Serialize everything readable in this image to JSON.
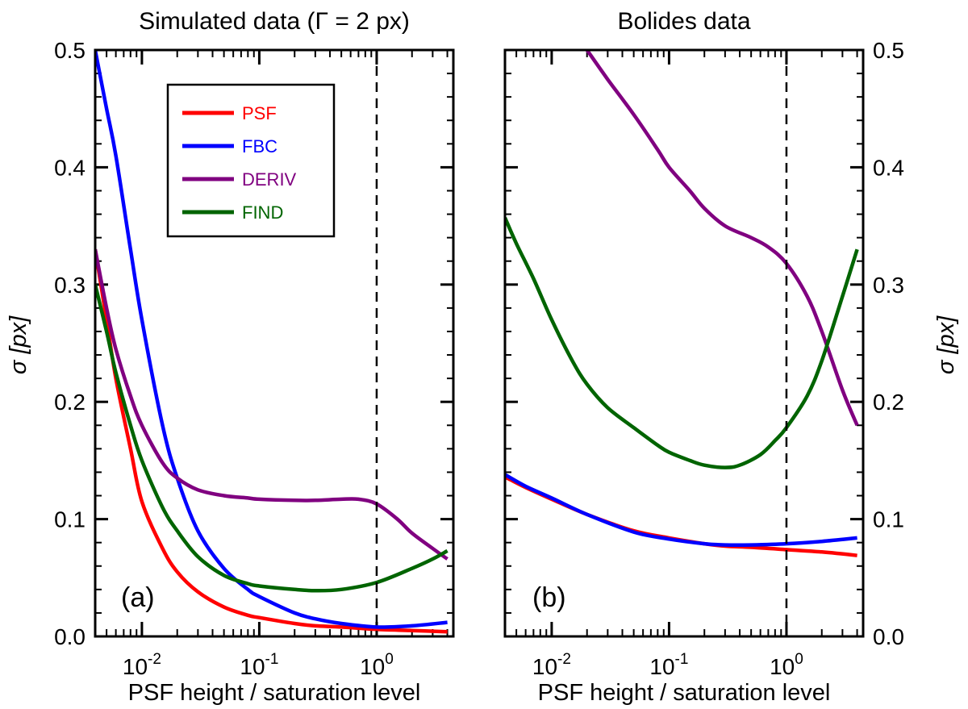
{
  "chart_data": [
    {
      "type": "line",
      "panel_label": "(a)",
      "title": "Simulated data (Γ = 2 px)",
      "xlabel": "PSF height / saturation level",
      "ylabel": "σ [px]",
      "xscale": "log",
      "xlim": [
        0.004,
        4.5
      ],
      "ylim": [
        0.0,
        0.5
      ],
      "yticks": [
        "0.0",
        "0.1",
        "0.2",
        "0.3",
        "0.4",
        "0.5"
      ],
      "xticks": [
        {
          "base": "10",
          "exp": "-2",
          "value": 0.01
        },
        {
          "base": "10",
          "exp": "-1",
          "value": 0.1
        },
        {
          "base": "10",
          "exp": "0",
          "value": 1.0
        }
      ],
      "reference_line": {
        "x": 1.0,
        "style": "dashed"
      },
      "legend": {
        "position": "top-center",
        "entries": [
          "PSF",
          "FBC",
          "DERIV",
          "FIND"
        ]
      },
      "series": [
        {
          "name": "PSF",
          "color": "#ff0000",
          "x": [
            0.004,
            0.005,
            0.006,
            0.008,
            0.01,
            0.015,
            0.02,
            0.03,
            0.05,
            0.08,
            0.1,
            0.2,
            0.3,
            0.5,
            1.0,
            2.0,
            4.0
          ],
          "y": [
            0.33,
            0.27,
            0.22,
            0.16,
            0.115,
            0.075,
            0.055,
            0.038,
            0.025,
            0.018,
            0.016,
            0.011,
            0.009,
            0.008,
            0.006,
            0.005,
            0.004
          ]
        },
        {
          "name": "FBC",
          "color": "#0000ff",
          "x": [
            0.004,
            0.005,
            0.006,
            0.008,
            0.01,
            0.015,
            0.02,
            0.03,
            0.05,
            0.08,
            0.1,
            0.2,
            0.3,
            0.5,
            1.0,
            2.0,
            4.0
          ],
          "y": [
            0.5,
            0.45,
            0.41,
            0.33,
            0.27,
            0.18,
            0.135,
            0.09,
            0.058,
            0.04,
            0.034,
            0.02,
            0.015,
            0.011,
            0.008,
            0.009,
            0.012
          ]
        },
        {
          "name": "DERIV",
          "color": "#800080",
          "x": [
            0.004,
            0.005,
            0.006,
            0.008,
            0.01,
            0.015,
            0.02,
            0.03,
            0.05,
            0.08,
            0.1,
            0.2,
            0.3,
            0.5,
            0.7,
            1.0,
            1.5,
            2.0,
            3.0,
            4.0
          ],
          "y": [
            0.33,
            0.28,
            0.245,
            0.205,
            0.18,
            0.148,
            0.135,
            0.125,
            0.12,
            0.118,
            0.117,
            0.116,
            0.116,
            0.117,
            0.117,
            0.113,
            0.1,
            0.088,
            0.075,
            0.066
          ]
        },
        {
          "name": "FIND",
          "color": "#006400",
          "x": [
            0.004,
            0.005,
            0.006,
            0.008,
            0.01,
            0.015,
            0.02,
            0.03,
            0.05,
            0.08,
            0.1,
            0.2,
            0.3,
            0.5,
            1.0,
            2.0,
            3.0,
            4.0
          ],
          "y": [
            0.3,
            0.26,
            0.225,
            0.18,
            0.15,
            0.11,
            0.09,
            0.068,
            0.052,
            0.045,
            0.043,
            0.04,
            0.039,
            0.04,
            0.046,
            0.058,
            0.066,
            0.073
          ]
        }
      ]
    },
    {
      "type": "line",
      "panel_label": "(b)",
      "title": "Bolides data",
      "xlabel": "PSF height / saturation level",
      "ylabel": "σ [px]",
      "xscale": "log",
      "xlim": [
        0.004,
        4.5
      ],
      "ylim": [
        0.0,
        0.5
      ],
      "yticks": [
        "0.0",
        "0.1",
        "0.2",
        "0.3",
        "0.4",
        "0.5"
      ],
      "xticks": [
        {
          "base": "10",
          "exp": "-2",
          "value": 0.01
        },
        {
          "base": "10",
          "exp": "-1",
          "value": 0.1
        },
        {
          "base": "10",
          "exp": "0",
          "value": 1.0
        }
      ],
      "reference_line": {
        "x": 1.0,
        "style": "dashed"
      },
      "series": [
        {
          "name": "PSF",
          "color": "#ff0000",
          "x": [
            0.004,
            0.006,
            0.01,
            0.02,
            0.05,
            0.1,
            0.2,
            0.3,
            0.5,
            1.0,
            2.0,
            4.0
          ],
          "y": [
            0.136,
            0.127,
            0.117,
            0.104,
            0.09,
            0.084,
            0.079,
            0.077,
            0.076,
            0.074,
            0.072,
            0.069
          ]
        },
        {
          "name": "FBC",
          "color": "#0000ff",
          "x": [
            0.004,
            0.006,
            0.01,
            0.02,
            0.05,
            0.1,
            0.2,
            0.3,
            0.5,
            1.0,
            2.0,
            4.0
          ],
          "y": [
            0.138,
            0.128,
            0.118,
            0.104,
            0.089,
            0.083,
            0.079,
            0.078,
            0.078,
            0.079,
            0.081,
            0.084
          ]
        },
        {
          "name": "DERIV",
          "color": "#800080",
          "x": [
            0.02,
            0.03,
            0.05,
            0.08,
            0.1,
            0.15,
            0.2,
            0.3,
            0.5,
            0.7,
            1.0,
            1.5,
            2.0,
            3.0,
            4.0
          ],
          "y": [
            0.5,
            0.475,
            0.445,
            0.415,
            0.4,
            0.38,
            0.365,
            0.35,
            0.34,
            0.332,
            0.318,
            0.29,
            0.26,
            0.21,
            0.18
          ]
        },
        {
          "name": "FIND",
          "color": "#006400",
          "x": [
            0.004,
            0.005,
            0.007,
            0.01,
            0.015,
            0.02,
            0.03,
            0.05,
            0.08,
            0.1,
            0.15,
            0.2,
            0.3,
            0.4,
            0.6,
            0.8,
            1.0,
            1.5,
            2.0,
            3.0,
            4.0
          ],
          "y": [
            0.357,
            0.335,
            0.305,
            0.27,
            0.235,
            0.215,
            0.195,
            0.178,
            0.163,
            0.157,
            0.15,
            0.146,
            0.144,
            0.146,
            0.155,
            0.167,
            0.178,
            0.205,
            0.235,
            0.29,
            0.33
          ]
        }
      ]
    }
  ]
}
